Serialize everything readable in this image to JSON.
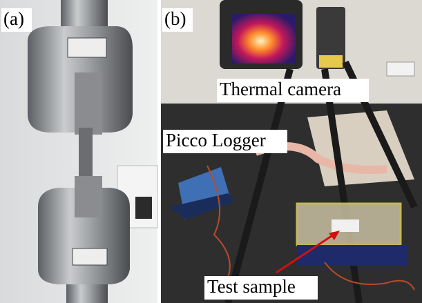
{
  "panels": [
    {
      "label": "(a)"
    },
    {
      "label": "(b)",
      "annotations": [
        "Thermal camera",
        "Picco Logger",
        "Test sample"
      ]
    }
  ]
}
